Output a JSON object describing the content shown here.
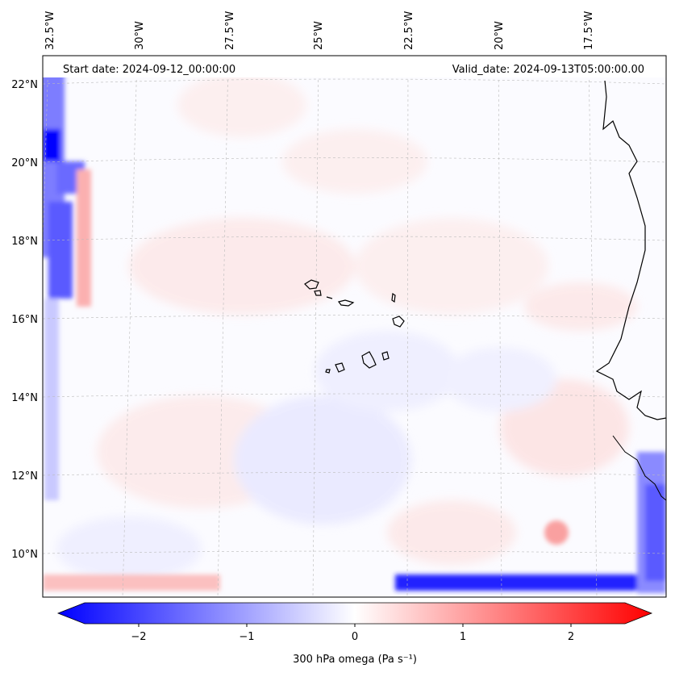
{
  "header": {
    "start_date": "Start date: 2024-09-12_00:00:00",
    "valid_date": "Valid_date: 2024-09-13T05:00:00.00"
  },
  "map": {
    "lon_labels": [
      "32.5°W",
      "30°W",
      "27.5°W",
      "25°W",
      "22.5°W",
      "20°W",
      "17.5°W"
    ],
    "lat_labels": [
      "22°N",
      "20°N",
      "18°N",
      "16°N",
      "14°N",
      "12°N",
      "10°N"
    ],
    "gridlines": true,
    "field": "300 hPa omega"
  },
  "colorbar": {
    "ticks": [
      "−2",
      "−1",
      "0",
      "1",
      "2"
    ],
    "range": [
      -2.7,
      2.7
    ],
    "label": "300 hPa omega (Pa s⁻¹)",
    "colors": {
      "negative": "#0000ff",
      "zero": "#ffffff",
      "positive": "#ff0000"
    }
  }
}
